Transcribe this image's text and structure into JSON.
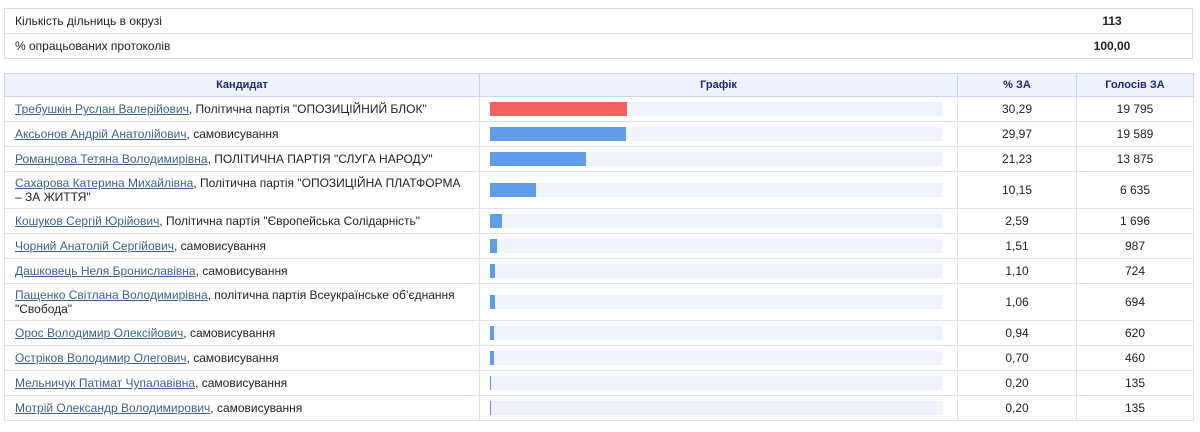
{
  "summary": {
    "precincts_label": "Кількість дільниць в окрузі",
    "precincts_value": "113",
    "processed_label": "% опрацьованих протоколів",
    "processed_value": "100,00"
  },
  "table": {
    "headers": {
      "candidate": "Кандидат",
      "chart": "Графік",
      "percent": "% ЗА",
      "votes": "Голосів ЗА"
    }
  },
  "colors": {
    "leader_bar": "#f35f5f",
    "bar": "#5f9de9",
    "bar_track": "#eef3fc"
  },
  "chart_data": {
    "type": "bar",
    "xlabel": "",
    "ylabel": "",
    "categories": [
      "Требушкін Руслан Валерійович",
      "Аксьонов Андрій Анатолійович",
      "Романцова Тетяна Володимирівна",
      "Сахарова Катерина Михайлівна",
      "Кошуков Сергій Юрійович",
      "Чорний Анатолій Сергійович",
      "Дашковець Неля Брониславівна",
      "Пащенко Світлана Володимирівна",
      "Орос Володимир Олексійович",
      "Острiков Володимир Олегович",
      "Мельничук Патімат Чупалавівна",
      "Мотрій Олександр Володимирович"
    ],
    "values": [
      30.29,
      29.97,
      21.23,
      10.15,
      2.59,
      1.51,
      1.1,
      1.06,
      0.94,
      0.7,
      0.2,
      0.2
    ],
    "ylim": [
      0,
      100
    ]
  },
  "candidates": [
    {
      "name": "Требушкін Руслан Валерійович",
      "affiliation": ", Політична партія \"ОПОЗИЦІЙНИЙ БЛОК\"",
      "percent": "30,29",
      "votes": "19 795"
    },
    {
      "name": "Аксьонов Андрій Анатолійович",
      "affiliation": ", самовисування",
      "percent": "29,97",
      "votes": "19 589"
    },
    {
      "name": "Романцова Тетяна Володимирівна",
      "affiliation": ", ПОЛІТИЧНА ПАРТІЯ \"СЛУГА НАРОДУ\"",
      "percent": "21,23",
      "votes": "13 875"
    },
    {
      "name": "Сахарова Катерина Михайлівна",
      "affiliation": ", Політична партія \"ОПОЗИЦІЙНА ПЛАТФОРМА – ЗА ЖИТТЯ\"",
      "percent": "10,15",
      "votes": "6 635"
    },
    {
      "name": "Кошуков Сергій Юрійович",
      "affiliation": ", Політична партія \"Європейська Солідарність\"",
      "percent": "2,59",
      "votes": "1 696"
    },
    {
      "name": "Чорний Анатолій Сергійович",
      "affiliation": ", самовисування",
      "percent": "1,51",
      "votes": "987"
    },
    {
      "name": "Дашковець Неля Брониславівна",
      "affiliation": ", самовисування",
      "percent": "1,10",
      "votes": "724"
    },
    {
      "name": "Пащенко Світлана Володимирівна",
      "affiliation": ", політична партія Всеукраїнське об’єднання \"Свобода\"",
      "percent": "1,06",
      "votes": "694"
    },
    {
      "name": "Орос Володимир Олексійович",
      "affiliation": ", самовисування",
      "percent": "0,94",
      "votes": "620"
    },
    {
      "name": "Острiков Володимир Олегович",
      "affiliation": ", самовисування",
      "percent": "0,70",
      "votes": "460"
    },
    {
      "name": "Мельничук Патімат Чупалавівна",
      "affiliation": ", самовисування",
      "percent": "0,20",
      "votes": "135"
    },
    {
      "name": "Мотрій Олександр Володимирович",
      "affiliation": ", самовисування",
      "percent": "0,20",
      "votes": "135"
    }
  ]
}
